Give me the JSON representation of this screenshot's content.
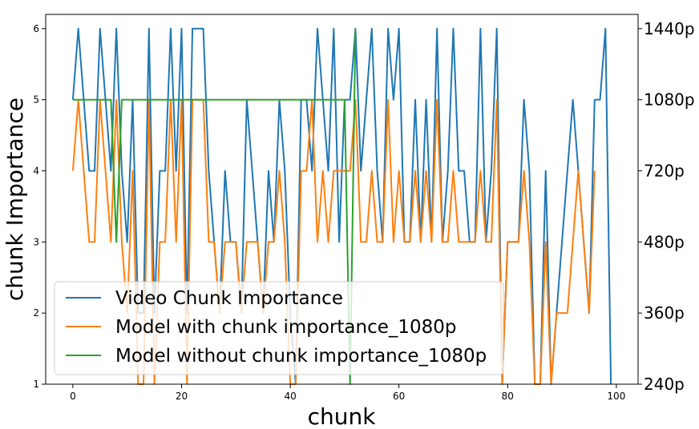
{
  "chart_data": {
    "type": "line",
    "xlabel": "chunk",
    "ylabel": "chunk Importance",
    "xlim": [
      -5,
      104
    ],
    "ylim": [
      1,
      6.2
    ],
    "x_ticks": [
      0,
      20,
      40,
      60,
      80,
      100
    ],
    "y_ticks": [
      1,
      2,
      3,
      4,
      5,
      6
    ],
    "y2_ticks": [
      {
        "value": 1,
        "label": "240p"
      },
      {
        "value": 2,
        "label": "360p"
      },
      {
        "value": 3,
        "label": "480p"
      },
      {
        "value": 4,
        "label": "720p"
      },
      {
        "value": 5,
        "label": "1080p"
      },
      {
        "value": 6,
        "label": "1440p"
      }
    ],
    "legend_position": "lower-left",
    "series": [
      {
        "name": "Video Chunk Importance",
        "color": "#1f77b4",
        "x_start": 0,
        "values": [
          5,
          6,
          5,
          4,
          4,
          6,
          5,
          4,
          6,
          4,
          3,
          5,
          2,
          2,
          6,
          2,
          4,
          4,
          6,
          4,
          6,
          2,
          6,
          6,
          6,
          4,
          3,
          2,
          4,
          3,
          3,
          2,
          5,
          4,
          3,
          2,
          4,
          3,
          5,
          4,
          2,
          1,
          5,
          5,
          4,
          6,
          5,
          4,
          6,
          3,
          5,
          5,
          6,
          4,
          5,
          6,
          4,
          3,
          6,
          5,
          6,
          3,
          3,
          5,
          3,
          5,
          3,
          6,
          3,
          4,
          6,
          4,
          4,
          3,
          3,
          6,
          3,
          4,
          6,
          1,
          3,
          3,
          3,
          5,
          4,
          1,
          1,
          4,
          1,
          2,
          3,
          4,
          5,
          4,
          3,
          2,
          5,
          5,
          6,
          1
        ]
      },
      {
        "name": "Model with chunk importance_1080p",
        "color": "#ff7f0e",
        "x_start": 0,
        "values": [
          4,
          5,
          4,
          3,
          3,
          5,
          4,
          3,
          5,
          3,
          2,
          4,
          1,
          1,
          5,
          1,
          3,
          3,
          5,
          3,
          5,
          1,
          5,
          5,
          5,
          3,
          3,
          2,
          3,
          3,
          3,
          2,
          3,
          3,
          3,
          2,
          3,
          3,
          4,
          3,
          1,
          1,
          4,
          4,
          5,
          3,
          4,
          3,
          4,
          4,
          4,
          4,
          5,
          3,
          3,
          4,
          3,
          3,
          5,
          3,
          4,
          3,
          3,
          4,
          3,
          4,
          3,
          5,
          3,
          3,
          4,
          3,
          3,
          3,
          3,
          4,
          3,
          3,
          5,
          1,
          3,
          3,
          3,
          4,
          3,
          1,
          1,
          3,
          1,
          2,
          2,
          2,
          3,
          4,
          3,
          2,
          4
        ]
      },
      {
        "name": "Model without chunk importance_1080p",
        "color": "#2ca02c",
        "x_start": 0,
        "values": [
          5,
          5,
          5,
          5,
          5,
          5,
          5,
          5,
          3,
          5,
          5,
          5,
          5,
          5,
          5,
          5,
          5,
          5,
          5,
          5,
          5,
          5,
          5,
          5,
          5,
          5,
          5,
          5,
          5,
          5,
          5,
          5,
          5,
          5,
          5,
          5,
          5,
          5,
          5,
          5,
          5,
          5,
          5,
          5,
          5,
          5,
          5,
          5,
          5,
          5,
          5,
          1,
          6
        ]
      }
    ]
  }
}
